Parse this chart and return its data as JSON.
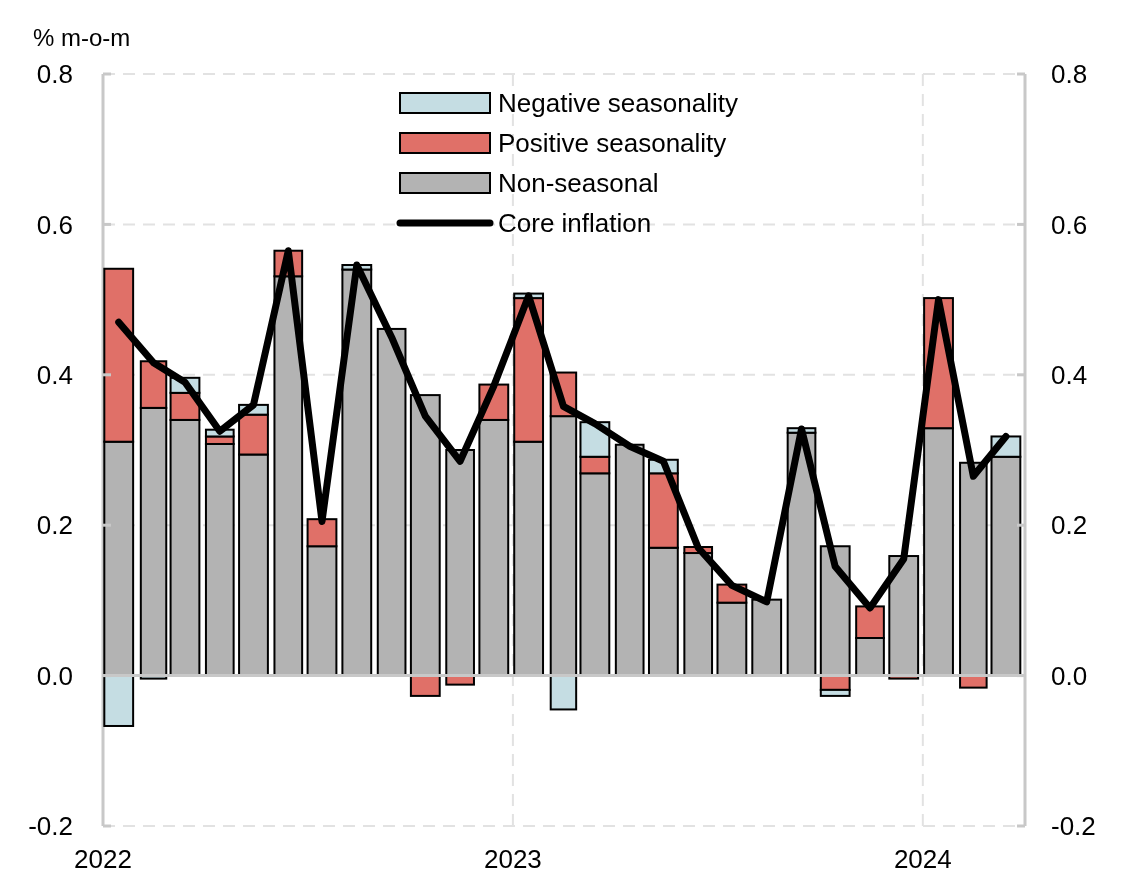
{
  "chart_data": {
    "type": "bar",
    "stacked": true,
    "ylabel": "% m-o-m",
    "x": [
      "2022-01-15",
      "2022-02-15",
      "2022-03-15",
      "2022-04-15",
      "2022-05-15",
      "2022-06-15",
      "2022-07-15",
      "2022-08-15",
      "2022-09-15",
      "2022-10-15",
      "2022-11-15",
      "2022-12-15",
      "2023-01-15",
      "2023-02-15",
      "2023-03-15",
      "2023-04-15",
      "2023-05-15",
      "2023-06-15",
      "2023-07-15",
      "2023-08-15",
      "2023-09-15",
      "2023-10-15",
      "2023-11-15",
      "2023-12-15",
      "2024-01-15",
      "2024-02-15",
      "2024-03-15"
    ],
    "series": [
      {
        "name": "Non-seasonal",
        "color": "#b3b3b3",
        "values": [
          0.311,
          0.356,
          0.34,
          0.308,
          0.294,
          0.531,
          0.172,
          0.54,
          0.461,
          0.373,
          0.3,
          0.34,
          0.311,
          0.345,
          0.269,
          0.307,
          0.17,
          0.163,
          0.097,
          0.101,
          0.323,
          0.172,
          0.05,
          0.159,
          0.329,
          0.283,
          0.291
        ]
      },
      {
        "name": "Positive seasonality",
        "color": "#e07068",
        "values": [
          0.23,
          0.062,
          0.036,
          0.01,
          0.053,
          0.034,
          0.036,
          null,
          null,
          -0.027,
          -0.012,
          0.047,
          0.191,
          0.058,
          0.022,
          null,
          0.099,
          0.008,
          0.024,
          null,
          null,
          -0.019,
          0.042,
          -0.004,
          0.173,
          -0.016,
          null
        ]
      },
      {
        "name": "Negative seasonality",
        "color": "#c5dde3",
        "values": [
          -0.067,
          -0.004,
          0.02,
          0.009,
          0.013,
          null,
          null,
          0.006,
          null,
          null,
          null,
          null,
          0.006,
          -0.045,
          0.046,
          null,
          0.018,
          null,
          null,
          null,
          0.006,
          -0.008,
          null,
          null,
          null,
          null,
          0.027
        ]
      },
      {
        "name": "Core inflation",
        "type": "line",
        "color": "#000000",
        "values": [
          0.47,
          0.416,
          0.39,
          0.325,
          0.36,
          0.565,
          0.205,
          0.546,
          0.45,
          0.345,
          0.285,
          0.385,
          0.505,
          0.358,
          0.335,
          0.305,
          0.285,
          0.17,
          0.12,
          0.098,
          0.328,
          0.145,
          0.09,
          0.155,
          0.5,
          0.265,
          0.318
        ]
      }
    ],
    "xlim": [
      "2022-01",
      "2024-04"
    ],
    "xticks": [
      "2022",
      "2023",
      "2024"
    ],
    "ylim": [
      -0.2,
      0.8
    ],
    "yticks": [
      {
        "value": -0.2,
        "label": "-0.2"
      },
      {
        "value": 0,
        "label": "0.0"
      },
      {
        "value": 0.2,
        "label": "0.2"
      },
      {
        "value": 0.4,
        "label": "0.4"
      },
      {
        "value": 0.6,
        "label": "0.6"
      },
      {
        "value": 0.8,
        "label": "0.8"
      }
    ],
    "y2lim": [
      -0.2,
      0.8
    ],
    "y2ticks": [
      {
        "value": -0.2,
        "label": "-0.2"
      },
      {
        "value": 0,
        "label": "0.0"
      },
      {
        "value": 0.2,
        "label": "0.2"
      },
      {
        "value": 0.4,
        "label": "0.4"
      },
      {
        "value": 0.6,
        "label": "0.6"
      },
      {
        "value": 0.8,
        "label": "0.8"
      }
    ],
    "grid": true,
    "legend": "top"
  }
}
